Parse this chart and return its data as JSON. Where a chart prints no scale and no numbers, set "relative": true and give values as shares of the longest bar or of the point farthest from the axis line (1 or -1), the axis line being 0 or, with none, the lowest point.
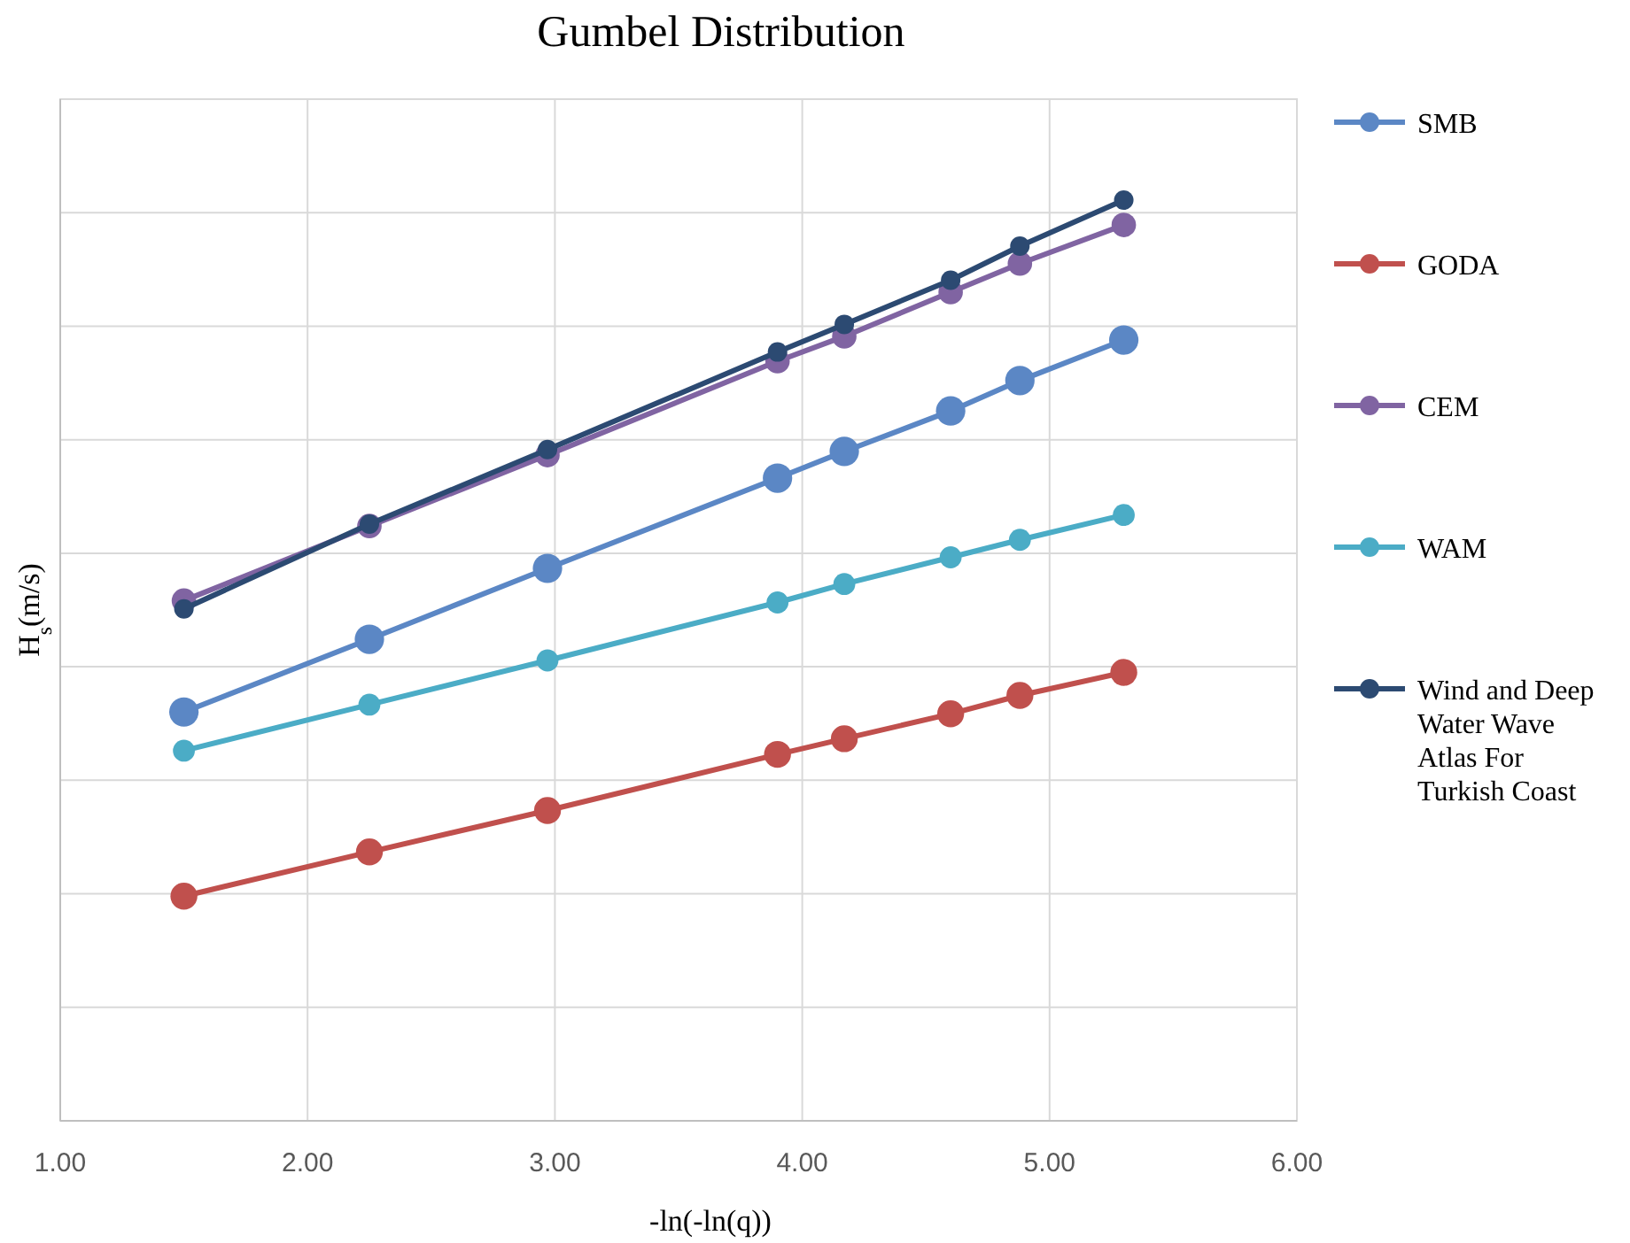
{
  "chart_data": {
    "type": "line",
    "title": "Gumbel Distribution",
    "xlabel": "-ln(-ln(q))",
    "ylabel": "H$_{s}$(m/s)",
    "relative": true,
    "x": [
      1.5,
      2.25,
      2.97,
      3.9,
      4.17,
      4.6,
      4.88,
      5.3
    ],
    "xlim": [
      1,
      6
    ],
    "xticks": [
      {
        "value": 1,
        "label": "1.00"
      },
      {
        "value": 2,
        "label": "2.00"
      },
      {
        "value": 3,
        "label": "3.00"
      },
      {
        "value": 4,
        "label": "4.00"
      },
      {
        "value": 5,
        "label": "5.00"
      },
      {
        "value": 6,
        "label": "6.00"
      }
    ],
    "grid": true,
    "legend": "right",
    "marker": "circle",
    "line_style": "solid",
    "series": [
      {
        "name": "SMB",
        "color": "#5b87c5",
        "values": [
          0.444,
          0.523,
          0.6,
          0.698,
          0.727,
          0.771,
          0.804,
          0.848
        ]
      },
      {
        "name": "GODA",
        "color": "#c0504d",
        "values": [
          0.244,
          0.292,
          0.337,
          0.398,
          0.415,
          0.442,
          0.462,
          0.487
        ]
      },
      {
        "name": "CEM",
        "color": "#8064a2",
        "values": [
          0.565,
          0.646,
          0.723,
          0.825,
          0.852,
          0.9,
          0.931,
          0.973
        ]
      },
      {
        "name": "WAM",
        "color": "#4bacc6",
        "values": [
          0.402,
          0.452,
          0.5,
          0.563,
          0.583,
          0.612,
          0.631,
          0.658
        ]
      },
      {
        "name": "Wind and Deep Water Wave Atlas For Turkish Coast",
        "color": "#2c4a72",
        "values": [
          0.556,
          0.648,
          0.729,
          0.835,
          0.865,
          0.913,
          0.95,
          1
        ]
      }
    ]
  }
}
